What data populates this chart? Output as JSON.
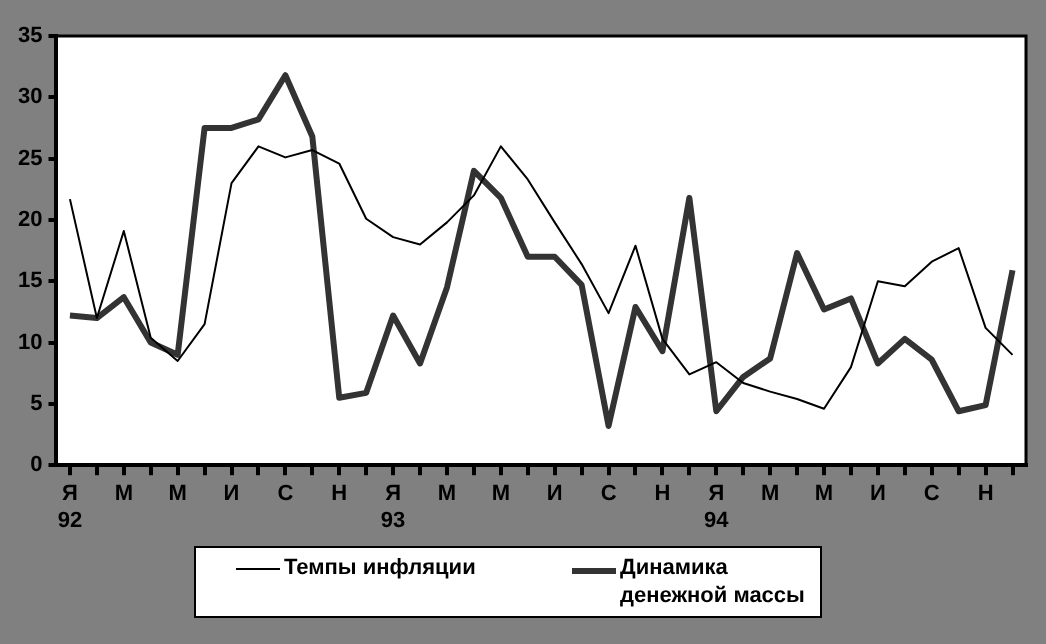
{
  "chart_data": {
    "type": "line",
    "categories": [
      "Я\n92",
      null,
      "М",
      null,
      "М",
      null,
      "И",
      null,
      "С",
      null,
      "Н",
      null,
      "Я\n93",
      null,
      "М",
      null,
      "М",
      null,
      "И",
      null,
      "С",
      null,
      "Н",
      null,
      "Я\n94",
      null,
      "М",
      null,
      "М",
      null,
      "И",
      null,
      "С",
      null,
      "Н",
      null
    ],
    "series": [
      {
        "name": "Темпы инфляции",
        "color": "#000000",
        "values": [
          21.7,
          12,
          19.1,
          10.4,
          8.5,
          11.5,
          23,
          26,
          25.1,
          25.7,
          24.6,
          20.1,
          18.6,
          18,
          19.8,
          22,
          26,
          23.3,
          19.8,
          16.4,
          12.4,
          17.9,
          10.3,
          7.4,
          8.4,
          6.7,
          6,
          5.4,
          4.6,
          8,
          15,
          14.6,
          16.6,
          17.7,
          11.2,
          9
        ]
      },
      {
        "name": "Динамика денежной массы",
        "color": "#333333",
        "values": [
          12.2,
          12,
          13.7,
          10,
          9,
          27.5,
          27.5,
          28.2,
          31.8,
          26.8,
          5.5,
          5.9,
          12.2,
          8.3,
          14.5,
          24,
          21.8,
          17,
          17,
          14.7,
          3.2,
          12.9,
          9.3,
          21.8,
          4.4,
          7.2,
          8.7,
          17.3,
          12.7,
          13.6,
          8.3,
          10.3,
          8.6,
          4.4,
          4.9,
          15.9
        ]
      }
    ],
    "ylim": [
      0,
      35
    ],
    "yticks": [
      0,
      5,
      10,
      15,
      20,
      25,
      30,
      35
    ],
    "grid": false,
    "legend": "bottom",
    "marker": "none",
    "line_style": "solid"
  }
}
